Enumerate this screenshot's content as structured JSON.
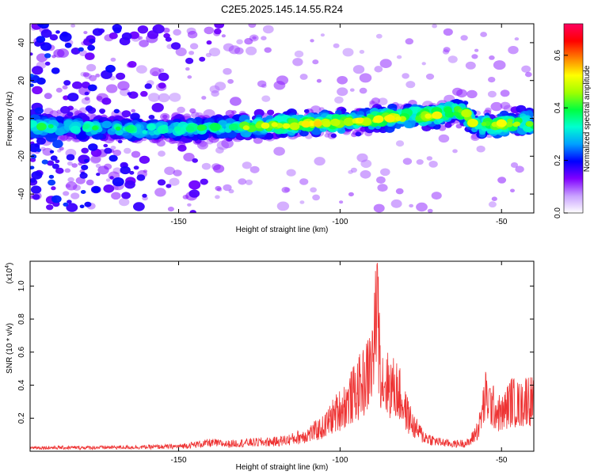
{
  "figure": {
    "title": "C2E5.2025.145.14.55.R24"
  },
  "chart_data": [
    {
      "type": "heatmap",
      "title": "C2E5.2025.145.14.55.R24",
      "xlabel": "Height of straight line (km)",
      "ylabel": "Frequency (Hz)",
      "xlim": [
        -196,
        -40
      ],
      "ylim": [
        -50,
        50
      ],
      "xticks": [
        -150,
        -100,
        -50
      ],
      "yticks": [
        -40,
        -20,
        0,
        20,
        40
      ],
      "ridge": {
        "description_values": "frequency of peak amplitude vs height",
        "x": [
          -196,
          -180,
          -160,
          -140,
          -120,
          -100,
          -85,
          -70,
          -62,
          -58,
          -50,
          -40
        ],
        "y": [
          -4,
          -5,
          -6,
          -5,
          -4,
          -2,
          0,
          2,
          4,
          -4,
          -3,
          -2
        ]
      },
      "colorbar": {
        "label": "Normalized spectral amplitude",
        "range": [
          0.0,
          0.72
        ],
        "ticks": [
          0.0,
          0.2,
          0.4,
          0.6
        ],
        "colors": [
          "#ffffff",
          "#c8a0ff",
          "#8000ff",
          "#0000ff",
          "#00a0ff",
          "#00ffd0",
          "#00ff40",
          "#a0ff00",
          "#ffff00",
          "#ff8000",
          "#ff0000",
          "#ff0060"
        ]
      }
    },
    {
      "type": "line",
      "xlabel": "Height of straight line (km)",
      "ylabel": "SNR (10 * v/v)",
      "scale_label": "(x10",
      "scale_exp": "4",
      "scale_close": ")",
      "xlim": [
        -196,
        -40
      ],
      "ylim": [
        0,
        1.15
      ],
      "xticks": [
        -150,
        -100,
        -50
      ],
      "yticks": [
        0.2,
        0.4,
        0.6,
        0.8,
        1.0
      ],
      "color": "#ee3333",
      "series": [
        {
          "x": [
            -196,
            -180,
            -160,
            -150,
            -140,
            -135,
            -130,
            -120,
            -115,
            -110,
            -105,
            -102,
            -98,
            -95,
            -92,
            -90,
            -88.5,
            -87,
            -85,
            -82,
            -80,
            -77,
            -74,
            -70,
            -65,
            -60,
            -57,
            -55,
            -52,
            -50,
            -47,
            -44,
            -42,
            -40
          ],
          "y": [
            0.03,
            0.03,
            0.035,
            0.04,
            0.07,
            0.06,
            0.07,
            0.08,
            0.1,
            0.14,
            0.2,
            0.3,
            0.4,
            0.5,
            0.6,
            0.75,
            1.15,
            0.6,
            0.55,
            0.5,
            0.35,
            0.2,
            0.12,
            0.08,
            0.06,
            0.07,
            0.2,
            0.45,
            0.35,
            0.3,
            0.42,
            0.38,
            0.45,
            0.4
          ]
        }
      ]
    }
  ]
}
